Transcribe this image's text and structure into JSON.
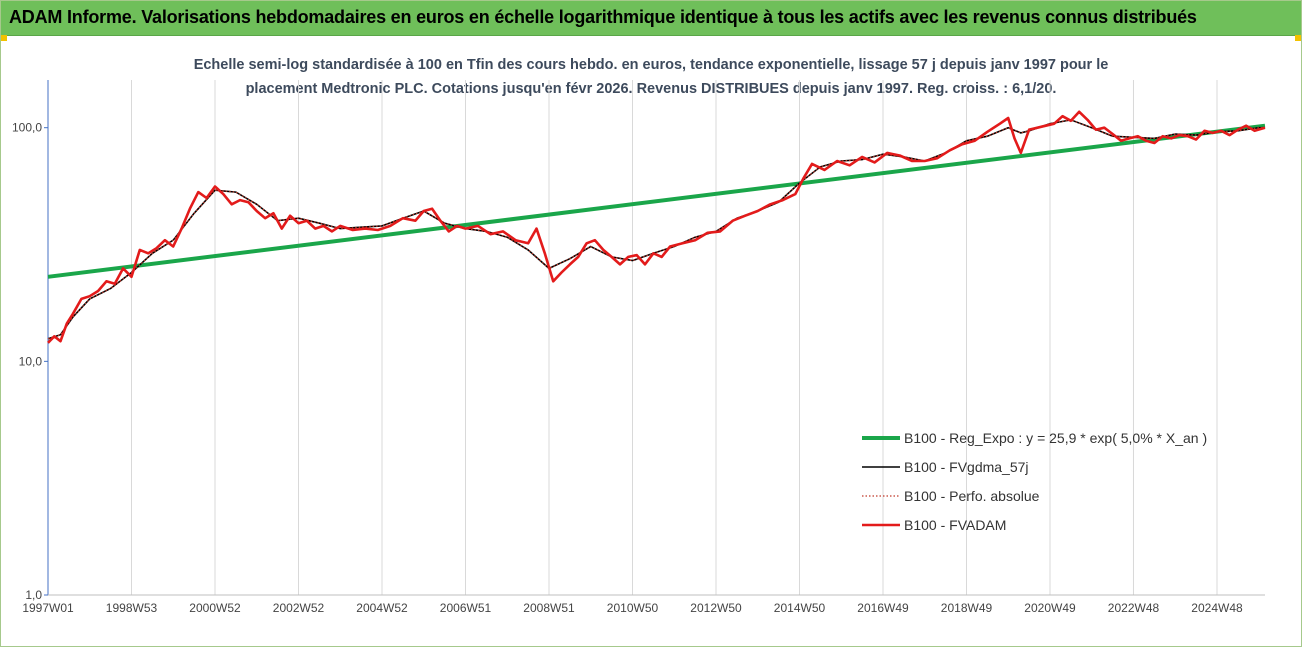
{
  "header": {
    "title": "ADAM Informe. Valorisations hebdomadaires en euros en échelle logarithmique identique à tous les actifs avec les revenus connus distribués"
  },
  "colors": {
    "header_bg": "#6fbf5a",
    "reg_expo": "#1aa64a",
    "fvgdma": "#000000",
    "perfo": "#c0392b",
    "fvadam": "#e31b1b"
  },
  "chart_data": {
    "type": "line",
    "title_line1": "Echelle semi-log standardisée à 100 en Tfin des cours hebdo. en euros, tendance exponentielle, lissage 57 j depuis janv 1997 pour le",
    "title_line2": "placement Medtronic PLC. Cotations jusqu'en févr 2026. Revenus DISTRIBUES depuis janv 1997. Reg. croiss. : 6,1/20.",
    "y_scale": "log",
    "ylim": [
      1,
      160
    ],
    "y_ticks": [
      {
        "value": 1,
        "label": "1,0"
      },
      {
        "value": 10,
        "label": "10,0"
      },
      {
        "value": 100,
        "label": "100,0"
      }
    ],
    "x_range": [
      1997.0,
      2026.15
    ],
    "x_ticks": [
      {
        "x": 1997.0,
        "label": "1997W01"
      },
      {
        "x": 1999.0,
        "label": "1998W53"
      },
      {
        "x": 2001.0,
        "label": "2000W52"
      },
      {
        "x": 2003.0,
        "label": "2002W52"
      },
      {
        "x": 2005.0,
        "label": "2004W52"
      },
      {
        "x": 2007.0,
        "label": "2006W51"
      },
      {
        "x": 2009.0,
        "label": "2008W51"
      },
      {
        "x": 2011.0,
        "label": "2010W50"
      },
      {
        "x": 2013.0,
        "label": "2012W50"
      },
      {
        "x": 2015.0,
        "label": "2014W50"
      },
      {
        "x": 2017.0,
        "label": "2016W49"
      },
      {
        "x": 2019.0,
        "label": "2018W49"
      },
      {
        "x": 2021.0,
        "label": "2020W49"
      },
      {
        "x": 2023.0,
        "label": "2022W48"
      },
      {
        "x": 2025.0,
        "label": "2024W48"
      }
    ],
    "grid": "vertical",
    "legend_position": "bottom-right",
    "series": [
      {
        "name": "B100 - Reg_Expo : y = 25,9 * exp( 5,0% *  X_an )",
        "style": "trend",
        "x": [
          1997.0,
          2026.15
        ],
        "y": [
          23.0,
          102.0
        ]
      },
      {
        "name": "B100 - FVgdma_57j",
        "style": "smooth",
        "x": [
          1997.0,
          1997.3,
          1997.6,
          1998.0,
          1998.5,
          1999.0,
          1999.5,
          2000.0,
          2000.5,
          2001.0,
          2001.5,
          2002.0,
          2002.5,
          2003.0,
          2003.5,
          2004.0,
          2004.5,
          2005.0,
          2005.5,
          2006.0,
          2006.5,
          2007.0,
          2007.5,
          2008.0,
          2008.5,
          2009.0,
          2009.5,
          2010.0,
          2010.5,
          2011.0,
          2011.5,
          2012.0,
          2012.5,
          2013.0,
          2013.5,
          2014.0,
          2014.5,
          2015.0,
          2015.5,
          2016.0,
          2016.5,
          2017.0,
          2017.5,
          2018.0,
          2018.5,
          2019.0,
          2019.5,
          2020.0,
          2020.3,
          2020.5,
          2021.0,
          2021.5,
          2022.0,
          2022.5,
          2023.0,
          2023.5,
          2024.0,
          2024.5,
          2025.0,
          2025.5,
          2026.0,
          2026.15
        ],
        "y": [
          12.5,
          13.0,
          15.5,
          18.5,
          20.5,
          24.0,
          29.0,
          33.0,
          43.0,
          54.0,
          53.0,
          47.0,
          40.0,
          41.0,
          39.0,
          37.0,
          37.5,
          38.0,
          41.0,
          44.0,
          39.0,
          37.0,
          36.0,
          34.0,
          30.0,
          25.0,
          27.5,
          31.0,
          28.0,
          27.0,
          29.0,
          31.0,
          34.0,
          36.0,
          41.0,
          44.0,
          48.0,
          58.0,
          68.0,
          72.0,
          73.0,
          77.0,
          75.0,
          72.0,
          78.0,
          88.0,
          92.0,
          100.0,
          95.0,
          97.0,
          104.0,
          108.0,
          100.0,
          92.0,
          91.0,
          90.0,
          94.0,
          93.0,
          96.0,
          97.0,
          100.0,
          100.0
        ]
      },
      {
        "name": "B100 - Perfo. absolue",
        "style": "dotted",
        "x": [
          1997.0,
          1997.3,
          1997.6,
          1998.0,
          1998.5,
          1999.0,
          1999.5,
          2000.0,
          2000.5,
          2001.0,
          2001.5,
          2002.0,
          2002.5,
          2003.0,
          2003.5,
          2004.0,
          2004.5,
          2005.0,
          2005.5,
          2006.0,
          2006.5,
          2007.0,
          2007.5,
          2008.0,
          2008.5,
          2009.0,
          2009.5,
          2010.0,
          2010.5,
          2011.0,
          2011.5,
          2012.0,
          2012.5,
          2013.0,
          2013.5,
          2014.0,
          2014.5,
          2015.0,
          2015.5,
          2016.0,
          2016.5,
          2017.0,
          2017.5,
          2018.0,
          2018.5,
          2019.0,
          2019.5,
          2020.0,
          2020.3,
          2020.5,
          2021.0,
          2021.5,
          2022.0,
          2022.5,
          2023.0,
          2023.5,
          2024.0,
          2024.5,
          2025.0,
          2025.5,
          2026.0,
          2026.15
        ],
        "y": [
          12.5,
          13.0,
          15.5,
          18.5,
          20.5,
          24.0,
          29.0,
          33.0,
          43.0,
          54.0,
          53.0,
          47.0,
          40.0,
          41.0,
          39.0,
          37.0,
          37.5,
          38.0,
          41.0,
          44.0,
          39.0,
          37.0,
          36.0,
          34.0,
          30.0,
          25.0,
          27.5,
          31.0,
          28.0,
          27.0,
          29.0,
          31.0,
          34.0,
          36.0,
          41.0,
          44.0,
          48.0,
          58.0,
          68.0,
          72.0,
          73.0,
          77.0,
          75.0,
          72.0,
          78.0,
          88.0,
          92.0,
          100.0,
          95.0,
          97.0,
          104.0,
          108.0,
          100.0,
          92.0,
          91.0,
          90.0,
          94.0,
          93.0,
          96.0,
          97.0,
          100.0,
          100.0
        ]
      },
      {
        "name": "B100 - FVADAM",
        "style": "bold",
        "x": [
          1997.0,
          1997.15,
          1997.3,
          1997.45,
          1997.6,
          1997.8,
          1998.0,
          1998.2,
          1998.4,
          1998.6,
          1998.8,
          1999.0,
          1999.2,
          1999.4,
          1999.6,
          1999.8,
          2000.0,
          2000.2,
          2000.4,
          2000.6,
          2000.8,
          2001.0,
          2001.2,
          2001.4,
          2001.6,
          2001.8,
          2002.0,
          2002.2,
          2002.4,
          2002.6,
          2002.8,
          2003.0,
          2003.2,
          2003.4,
          2003.6,
          2003.8,
          2004.0,
          2004.3,
          2004.6,
          2004.9,
          2005.2,
          2005.5,
          2005.8,
          2006.0,
          2006.2,
          2006.4,
          2006.6,
          2006.8,
          2007.0,
          2007.3,
          2007.6,
          2007.9,
          2008.2,
          2008.5,
          2008.7,
          2008.9,
          2009.1,
          2009.3,
          2009.5,
          2009.7,
          2009.9,
          2010.1,
          2010.3,
          2010.5,
          2010.7,
          2010.9,
          2011.1,
          2011.3,
          2011.5,
          2011.7,
          2011.9,
          2012.2,
          2012.5,
          2012.8,
          2013.1,
          2013.4,
          2013.7,
          2014.0,
          2014.3,
          2014.6,
          2014.9,
          2015.1,
          2015.3,
          2015.6,
          2015.9,
          2016.2,
          2016.5,
          2016.8,
          2017.1,
          2017.4,
          2017.7,
          2018.0,
          2018.3,
          2018.6,
          2018.9,
          2019.2,
          2019.5,
          2019.8,
          2020.0,
          2020.15,
          2020.3,
          2020.5,
          2020.8,
          2021.1,
          2021.3,
          2021.5,
          2021.7,
          2021.9,
          2022.1,
          2022.3,
          2022.5,
          2022.7,
          2022.9,
          2023.1,
          2023.3,
          2023.5,
          2023.7,
          2023.9,
          2024.1,
          2024.3,
          2024.5,
          2024.7,
          2024.9,
          2025.1,
          2025.3,
          2025.5,
          2025.7,
          2025.9,
          2026.15
        ],
        "y": [
          12.0,
          12.8,
          12.2,
          14.5,
          16.0,
          18.5,
          19.0,
          20.0,
          22.0,
          21.5,
          25.0,
          23.0,
          30.0,
          29.0,
          30.5,
          33.0,
          31.0,
          37.0,
          45.0,
          53.0,
          50.0,
          56.0,
          52.0,
          47.0,
          49.0,
          48.0,
          44.0,
          41.0,
          43.0,
          37.0,
          42.0,
          39.0,
          40.0,
          37.0,
          38.0,
          36.0,
          38.0,
          36.5,
          37.0,
          36.5,
          38.0,
          41.0,
          40.0,
          44.0,
          45.0,
          40.0,
          36.0,
          38.0,
          37.0,
          38.0,
          35.0,
          36.0,
          33.0,
          32.0,
          37.0,
          29.0,
          22.0,
          24.0,
          26.0,
          28.0,
          32.0,
          33.0,
          30.0,
          28.0,
          26.0,
          28.0,
          28.5,
          26.0,
          29.0,
          28.0,
          31.0,
          32.0,
          33.0,
          35.5,
          36.0,
          40.0,
          42.0,
          44.0,
          47.0,
          49.0,
          52.0,
          61.0,
          70.0,
          66.0,
          72.0,
          69.0,
          75.0,
          71.0,
          78.0,
          76.0,
          72.0,
          72.0,
          74.0,
          80.0,
          85.0,
          88.0,
          96.0,
          104.0,
          110.0,
          90.0,
          78.0,
          98.0,
          101.0,
          104.0,
          112.0,
          107.0,
          117.0,
          108.0,
          98.0,
          100.0,
          94.0,
          88.0,
          90.0,
          92.0,
          88.0,
          86.0,
          92.0,
          90.0,
          93.0,
          92.0,
          89.0,
          97.0,
          95.0,
          97.0,
          93.0,
          98.0,
          102.0,
          97.0,
          100.0
        ]
      }
    ]
  }
}
